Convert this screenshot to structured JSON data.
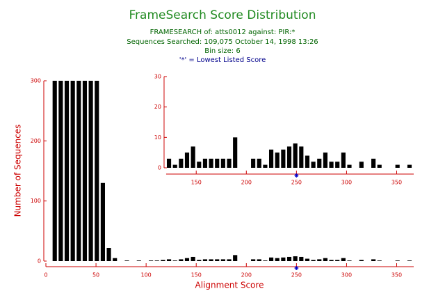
{
  "chart_data": {
    "type": "histogram",
    "title": "FrameSearch Score Distribution",
    "subtitles": [
      "FRAMESEARCH of: atts0012  against: PIR:*",
      "Sequences Searched: 109,075  October 14, 1998 13:26",
      "Bin size: 6"
    ],
    "note": "'*' = Lowest Listed Score",
    "marker_x": 250,
    "xlabel": "Alignment Score",
    "ylabel": "Number of Sequences",
    "bins": [
      6,
      12,
      18,
      24,
      30,
      36,
      42,
      48,
      54,
      60,
      66,
      72,
      78,
      84,
      90,
      96,
      102,
      108,
      114,
      120,
      126,
      132,
      138,
      144,
      150,
      156,
      162,
      168,
      174,
      180,
      186,
      192,
      198,
      204,
      210,
      216,
      222,
      228,
      234,
      240,
      246,
      252,
      258,
      264,
      270,
      276,
      282,
      288,
      294,
      300,
      306,
      312,
      318,
      324,
      330,
      336,
      342,
      348,
      354,
      360,
      366
    ],
    "counts": [
      300,
      300,
      300,
      300,
      300,
      300,
      300,
      300,
      130,
      22,
      5,
      0,
      1,
      0,
      1,
      0,
      1,
      1,
      2,
      3,
      1,
      3,
      5,
      7,
      2,
      3,
      3,
      3,
      3,
      3,
      10,
      0,
      0,
      3,
      3,
      1,
      6,
      5,
      6,
      7,
      8,
      7,
      4,
      2,
      3,
      5,
      2,
      2,
      5,
      1,
      0,
      2,
      0,
      3,
      1,
      0,
      0,
      1,
      0,
      1
    ],
    "color": "#000000",
    "xlim": [
      0,
      367
    ],
    "ylim": [
      0,
      300
    ],
    "xticks": [
      0,
      50,
      100,
      150,
      200,
      250,
      300,
      350
    ],
    "yticks": [
      0,
      100,
      200,
      300
    ],
    "inset": {
      "xlim": [
        120,
        367
      ],
      "ylim": [
        0,
        30
      ],
      "xticks": [
        150,
        200,
        250,
        300,
        350
      ],
      "yticks": [
        0,
        10,
        20,
        30
      ]
    }
  }
}
